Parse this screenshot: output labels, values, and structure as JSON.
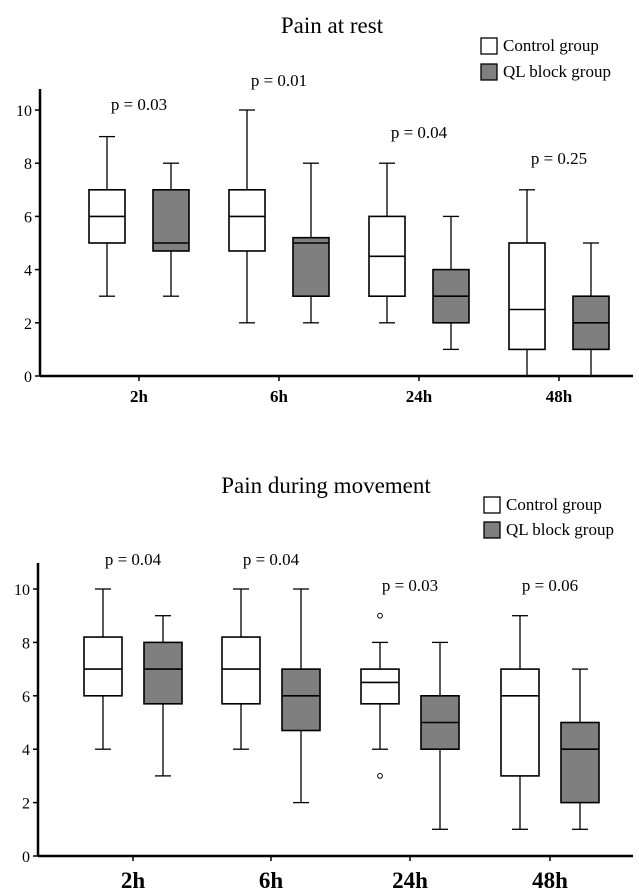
{
  "colors": {
    "control_fill": "#ffffff",
    "ql_fill": "#7f7f7f",
    "stroke": "#000000"
  },
  "chart_data": [
    {
      "type": "box",
      "title": "Pain at rest",
      "xlabel": "",
      "ylabel": "",
      "categories": [
        "2h",
        "6h",
        "24h",
        "48h"
      ],
      "ylim": [
        0,
        11
      ],
      "yticks": [
        0,
        2,
        4,
        6,
        8,
        10
      ],
      "legend": {
        "placement": "top-right"
      },
      "grid": false,
      "p_values": [
        "p = 0.03",
        "p = 0.01",
        "p = 0.04",
        "p = 0.25"
      ],
      "series": [
        {
          "name": "Control group",
          "boxes": [
            {
              "min": 3,
              "q1": 5,
              "median": 6,
              "q3": 7,
              "max": 9,
              "outliers": []
            },
            {
              "min": 2,
              "q1": 4.7,
              "median": 6,
              "q3": 7,
              "max": 10,
              "outliers": []
            },
            {
              "min": 2,
              "q1": 3,
              "median": 4.5,
              "q3": 6,
              "max": 8,
              "outliers": []
            },
            {
              "min": 0,
              "q1": 1,
              "median": 2.5,
              "q3": 5,
              "max": 7,
              "outliers": []
            }
          ]
        },
        {
          "name": "QL block group",
          "boxes": [
            {
              "min": 3,
              "q1": 4.7,
              "median": 5,
              "q3": 7,
              "max": 8,
              "outliers": []
            },
            {
              "min": 2,
              "q1": 3,
              "median": 5,
              "q3": 5.2,
              "max": 8,
              "outliers": []
            },
            {
              "min": 1,
              "q1": 2,
              "median": 3,
              "q3": 4,
              "max": 6,
              "outliers": []
            },
            {
              "min": 0,
              "q1": 1,
              "median": 2,
              "q3": 3,
              "max": 5,
              "outliers": []
            }
          ]
        }
      ]
    },
    {
      "type": "box",
      "title": "Pain during movement",
      "xlabel": "",
      "ylabel": "",
      "categories": [
        "2h",
        "6h",
        "24h",
        "48h"
      ],
      "ylim": [
        0,
        11
      ],
      "yticks": [
        0,
        2,
        4,
        6,
        8,
        10
      ],
      "legend": {
        "placement": "top-right"
      },
      "grid": false,
      "p_values": [
        "p = 0.04",
        "p = 0.04",
        "p = 0.03",
        "p = 0.06"
      ],
      "series": [
        {
          "name": "Control group",
          "boxes": [
            {
              "min": 4,
              "q1": 6,
              "median": 7,
              "q3": 8.2,
              "max": 10,
              "outliers": []
            },
            {
              "min": 4,
              "q1": 5.7,
              "median": 7,
              "q3": 8.2,
              "max": 10,
              "outliers": []
            },
            {
              "min": 4,
              "q1": 5.7,
              "median": 6.5,
              "q3": 7,
              "max": 8,
              "outliers": [
                9,
                3
              ]
            },
            {
              "min": 1,
              "q1": 3,
              "median": 6,
              "q3": 7,
              "max": 9,
              "outliers": []
            }
          ]
        },
        {
          "name": "QL block group",
          "boxes": [
            {
              "min": 3,
              "q1": 5.7,
              "median": 7,
              "q3": 8,
              "max": 9,
              "outliers": []
            },
            {
              "min": 2,
              "q1": 4.7,
              "median": 6,
              "q3": 7,
              "max": 10,
              "outliers": []
            },
            {
              "min": 1,
              "q1": 4,
              "median": 5,
              "q3": 6,
              "max": 8,
              "outliers": []
            },
            {
              "min": 1,
              "q1": 2,
              "median": 4,
              "q3": 5,
              "max": 7,
              "outliers": []
            }
          ]
        }
      ]
    }
  ]
}
